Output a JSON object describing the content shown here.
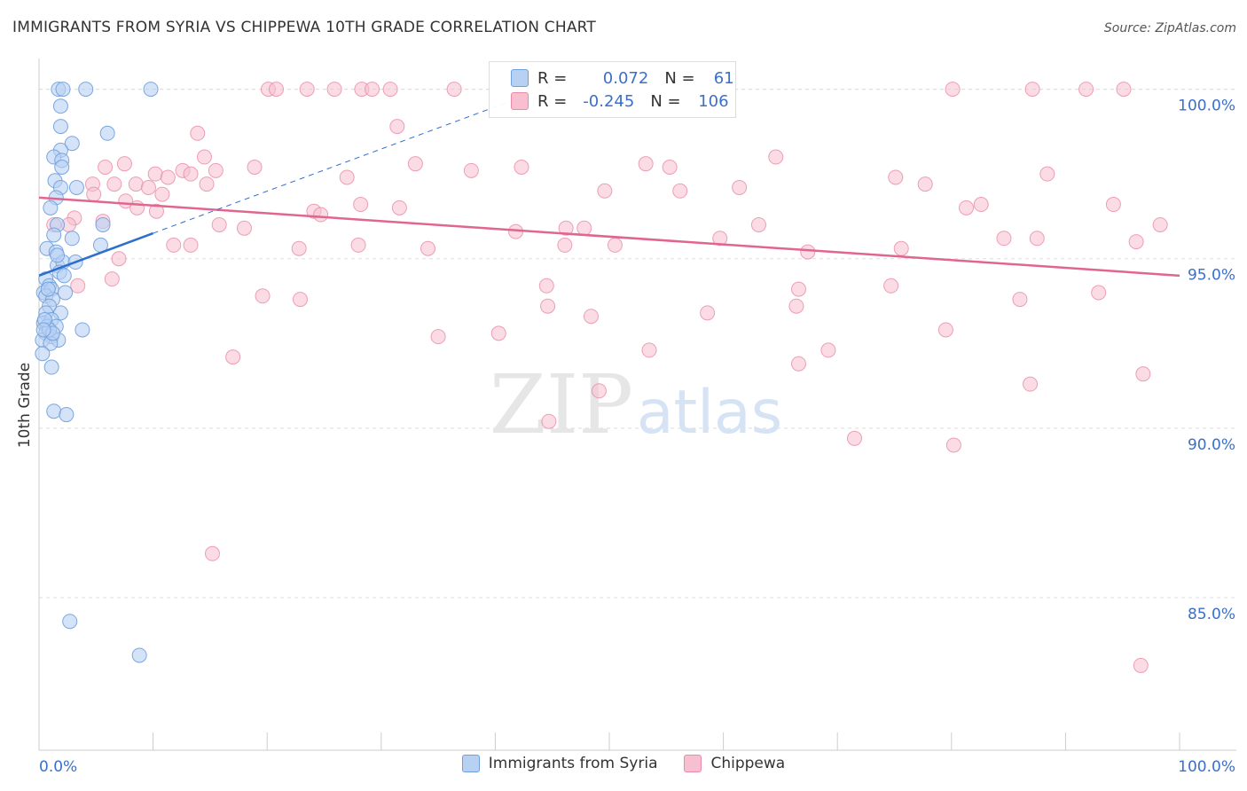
{
  "title": "IMMIGRANTS FROM SYRIA VS CHIPPEWA 10TH GRADE CORRELATION CHART",
  "source": "Source: ZipAtlas.com",
  "watermark": {
    "zip": "ZIP",
    "atlas": "atlas"
  },
  "stats": {
    "r_label": "R =",
    "n_label": "N =",
    "series1": {
      "r": "0.072",
      "n": "61"
    },
    "series2": {
      "r": "-0.245",
      "n": "106"
    }
  },
  "colors": {
    "blue_fill": "#b7d1f3",
    "blue_stroke": "#6f9fdc",
    "blue_line": "#2f6fcc",
    "pink_fill": "#f7bfd0",
    "pink_stroke": "#e88aa8",
    "pink_line": "#e0668f",
    "axis_label": "#3b6fc9",
    "grid": "#dddddd"
  },
  "chart_data": {
    "type": "scatter",
    "xlabel": "",
    "ylabel": "10th Grade",
    "xlim": [
      0,
      100
    ],
    "ylim": [
      80.5,
      100.8
    ],
    "x_tick_labels": [
      {
        "value": 0,
        "label": "0.0%"
      },
      {
        "value": 100,
        "label": "100.0%"
      }
    ],
    "y_tick_labels": [
      {
        "value": 100,
        "label": "100.0%"
      },
      {
        "value": 95,
        "label": "95.0%"
      },
      {
        "value": 90,
        "label": "90.0%"
      },
      {
        "value": 85,
        "label": "85.0%"
      }
    ],
    "legend": [
      "Immigrants from Syria",
      "Chippewa"
    ],
    "series": [
      {
        "name": "Immigrants from Syria",
        "trend": {
          "x": [
            0,
            10
          ],
          "y": [
            94.5,
            95.75
          ],
          "dash_to": [
            45,
            100.1
          ]
        },
        "points": [
          [
            1.7,
            100
          ],
          [
            2.1,
            100
          ],
          [
            4.1,
            100
          ],
          [
            9.8,
            100
          ],
          [
            1.9,
            99.5
          ],
          [
            1.9,
            98.9
          ],
          [
            2.9,
            98.4
          ],
          [
            6,
            98.7
          ],
          [
            1.9,
            98.2
          ],
          [
            1.3,
            98
          ],
          [
            2,
            97.9
          ],
          [
            2,
            97.7
          ],
          [
            1.4,
            97.3
          ],
          [
            1.9,
            97.1
          ],
          [
            3.3,
            97.1
          ],
          [
            1.5,
            96.8
          ],
          [
            1,
            96.5
          ],
          [
            1.6,
            96
          ],
          [
            5.6,
            96
          ],
          [
            1.3,
            95.7
          ],
          [
            2.9,
            95.6
          ],
          [
            5.4,
            95.4
          ],
          [
            0.7,
            95.3
          ],
          [
            1.5,
            95.2
          ],
          [
            1.6,
            94.8
          ],
          [
            2.1,
            94.9
          ],
          [
            3.2,
            94.9
          ],
          [
            1.8,
            94.6
          ],
          [
            2.2,
            94.5
          ],
          [
            0.6,
            94.4
          ],
          [
            0.9,
            94.2
          ],
          [
            0.4,
            94
          ],
          [
            1.1,
            94.1
          ],
          [
            2.3,
            94
          ],
          [
            0.6,
            93.9
          ],
          [
            1.2,
            93.8
          ],
          [
            0.9,
            93.6
          ],
          [
            0.6,
            93.4
          ],
          [
            1.9,
            93.4
          ],
          [
            0.4,
            93.1
          ],
          [
            1.1,
            93.2
          ],
          [
            0.7,
            93
          ],
          [
            1.5,
            93
          ],
          [
            3.8,
            92.9
          ],
          [
            0.6,
            92.8
          ],
          [
            1.1,
            92.7
          ],
          [
            0.3,
            92.6
          ],
          [
            1.7,
            92.6
          ],
          [
            1,
            92.5
          ],
          [
            0.3,
            92.2
          ],
          [
            1.1,
            91.8
          ],
          [
            1.3,
            90.5
          ],
          [
            2.4,
            90.4
          ],
          [
            2.7,
            84.3
          ],
          [
            8.8,
            83.3
          ],
          [
            0.9,
            92.9
          ],
          [
            0.5,
            93.2
          ],
          [
            1.2,
            92.8
          ],
          [
            0.8,
            94.1
          ],
          [
            1.6,
            95.1
          ],
          [
            0.4,
            92.9
          ]
        ]
      },
      {
        "name": "Chippewa",
        "trend": {
          "x": [
            0,
            100
          ],
          "y": [
            96.8,
            94.5
          ]
        },
        "points": [
          [
            20.1,
            100
          ],
          [
            20.8,
            100
          ],
          [
            23.5,
            100
          ],
          [
            25.9,
            100
          ],
          [
            28.3,
            100
          ],
          [
            29.2,
            100
          ],
          [
            30.8,
            100
          ],
          [
            36.4,
            100
          ],
          [
            80.1,
            100
          ],
          [
            87.1,
            100
          ],
          [
            91.8,
            100
          ],
          [
            95.1,
            100
          ],
          [
            31.4,
            98.9
          ],
          [
            13.9,
            98.7
          ],
          [
            14.5,
            98
          ],
          [
            7.5,
            97.8
          ],
          [
            5.8,
            97.7
          ],
          [
            10.2,
            97.5
          ],
          [
            11.3,
            97.4
          ],
          [
            12.6,
            97.6
          ],
          [
            13.3,
            97.5
          ],
          [
            15.5,
            97.6
          ],
          [
            18.9,
            97.7
          ],
          [
            33,
            97.8
          ],
          [
            37.9,
            97.6
          ],
          [
            42.3,
            97.7
          ],
          [
            53.2,
            97.8
          ],
          [
            55.3,
            97.7
          ],
          [
            4.7,
            97.2
          ],
          [
            6.6,
            97.2
          ],
          [
            8.5,
            97.2
          ],
          [
            9.6,
            97.1
          ],
          [
            14.7,
            97.2
          ],
          [
            27,
            97.4
          ],
          [
            49.6,
            97
          ],
          [
            56.2,
            97
          ],
          [
            61.4,
            97.1
          ],
          [
            75.1,
            97.4
          ],
          [
            77.7,
            97.2
          ],
          [
            82.6,
            96.6
          ],
          [
            88.4,
            97.5
          ],
          [
            94.2,
            96.6
          ],
          [
            7.6,
            96.7
          ],
          [
            8.6,
            96.5
          ],
          [
            4.8,
            96.9
          ],
          [
            10.3,
            96.4
          ],
          [
            10.8,
            96.9
          ],
          [
            3.1,
            96.2
          ],
          [
            5.6,
            96.1
          ],
          [
            1.3,
            96
          ],
          [
            2.6,
            96
          ],
          [
            15.8,
            96
          ],
          [
            18,
            95.9
          ],
          [
            24.1,
            96.4
          ],
          [
            24.7,
            96.3
          ],
          [
            28.2,
            96.6
          ],
          [
            31.6,
            96.5
          ],
          [
            41.8,
            95.8
          ],
          [
            46.2,
            95.9
          ],
          [
            47.8,
            95.9
          ],
          [
            59.7,
            95.6
          ],
          [
            63.1,
            96
          ],
          [
            81.3,
            96.5
          ],
          [
            84.6,
            95.6
          ],
          [
            87.5,
            95.6
          ],
          [
            96.2,
            95.5
          ],
          [
            7,
            95
          ],
          [
            11.8,
            95.4
          ],
          [
            13.3,
            95.4
          ],
          [
            22.8,
            95.3
          ],
          [
            28,
            95.4
          ],
          [
            34.1,
            95.3
          ],
          [
            46.1,
            95.4
          ],
          [
            50.5,
            95.4
          ],
          [
            75.6,
            95.3
          ],
          [
            67.4,
            95.2
          ],
          [
            6.4,
            94.4
          ],
          [
            3.4,
            94.2
          ],
          [
            44.5,
            94.2
          ],
          [
            66.6,
            94.1
          ],
          [
            74.7,
            94.2
          ],
          [
            19.6,
            93.9
          ],
          [
            22.9,
            93.8
          ],
          [
            44.6,
            93.6
          ],
          [
            48.4,
            93.3
          ],
          [
            58.6,
            93.4
          ],
          [
            66.4,
            93.6
          ],
          [
            86,
            93.8
          ],
          [
            92.9,
            94
          ],
          [
            98.3,
            96
          ],
          [
            40.3,
            92.8
          ],
          [
            35,
            92.7
          ],
          [
            53.5,
            92.3
          ],
          [
            69.2,
            92.3
          ],
          [
            79.5,
            92.9
          ],
          [
            17,
            92.1
          ],
          [
            66.6,
            91.9
          ],
          [
            96.8,
            91.6
          ],
          [
            86.9,
            91.3
          ],
          [
            49.1,
            91.1
          ],
          [
            44.7,
            90.2
          ],
          [
            71.5,
            89.7
          ],
          [
            80.2,
            89.5
          ],
          [
            15.2,
            86.3
          ],
          [
            96.6,
            83
          ],
          [
            64.6,
            98
          ]
        ]
      }
    ]
  }
}
